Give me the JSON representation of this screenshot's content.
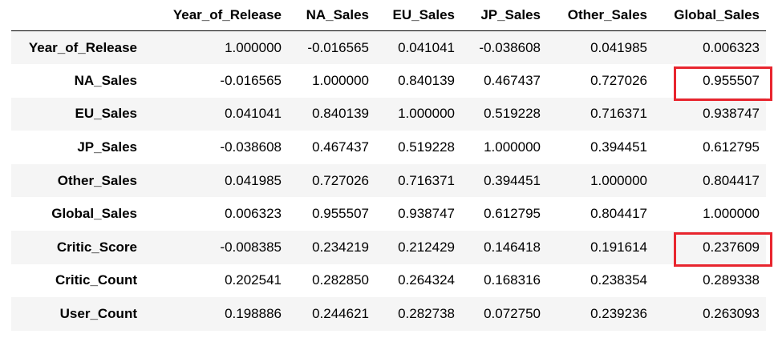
{
  "table": {
    "index_header": "",
    "columns": [
      "Year_of_Release",
      "NA_Sales",
      "EU_Sales",
      "JP_Sales",
      "Other_Sales",
      "Global_Sales"
    ],
    "rows": [
      {
        "label": "Year_of_Release",
        "values": [
          "1.000000",
          "-0.016565",
          "0.041041",
          "-0.038608",
          "0.041985",
          "0.006323"
        ]
      },
      {
        "label": "NA_Sales",
        "values": [
          "-0.016565",
          "1.000000",
          "0.840139",
          "0.467437",
          "0.727026",
          "0.955507"
        ]
      },
      {
        "label": "EU_Sales",
        "values": [
          "0.041041",
          "0.840139",
          "1.000000",
          "0.519228",
          "0.716371",
          "0.938747"
        ]
      },
      {
        "label": "JP_Sales",
        "values": [
          "-0.038608",
          "0.467437",
          "0.519228",
          "1.000000",
          "0.394451",
          "0.612795"
        ]
      },
      {
        "label": "Other_Sales",
        "values": [
          "0.041985",
          "0.727026",
          "0.716371",
          "0.394451",
          "1.000000",
          "0.804417"
        ]
      },
      {
        "label": "Global_Sales",
        "values": [
          "0.006323",
          "0.955507",
          "0.938747",
          "0.612795",
          "0.804417",
          "1.000000"
        ]
      },
      {
        "label": "Critic_Score",
        "values": [
          "-0.008385",
          "0.234219",
          "0.212429",
          "0.146418",
          "0.191614",
          "0.237609"
        ]
      },
      {
        "label": "Critic_Count",
        "values": [
          "0.202541",
          "0.282850",
          "0.264324",
          "0.168316",
          "0.238354",
          "0.289338"
        ]
      },
      {
        "label": "User_Count",
        "values": [
          "0.198886",
          "0.244621",
          "0.282738",
          "0.072750",
          "0.239236",
          "0.263093"
        ]
      }
    ]
  },
  "highlights": {
    "color": "#e8252e",
    "cells": [
      {
        "row": "NA_Sales",
        "column": "Global_Sales"
      },
      {
        "row": "Critic_Score",
        "column": "Global_Sales"
      }
    ]
  }
}
